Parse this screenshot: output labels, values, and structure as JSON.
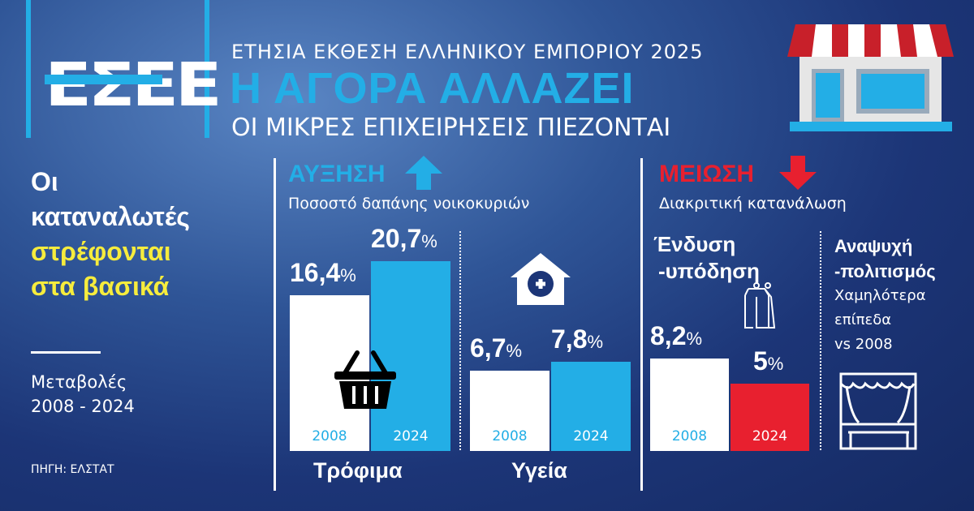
{
  "header": {
    "logo": "ΕΣΕΕ",
    "kicker": "ΕΤΗΣΙΑ ΕΚΘΕΣΗ ΕΛΛΗΝΙΚΟΥ ΕΜΠΟΡΙΟΥ 2025",
    "title": "Η ΑΓΟΡΑ ΑΛΛΑΖΕΙ",
    "subtitle": "ΟΙ ΜΙΚΡΕΣ ΕΠΙΧΕΙΡΗΣΕΙΣ ΠΙΕΖΟΝΤΑΙ"
  },
  "lead": {
    "line1": "Οι",
    "line2": "καταναλωτές",
    "line3": "στρέφονται",
    "line4": "στα βασικά",
    "period_label": "Μεταβολές",
    "period": "2008 - 2024",
    "source": "ΠΗΓΗ: ΕΛΣΤΑΤ"
  },
  "colors": {
    "blue": "#23aee6",
    "red": "#e8202f",
    "white": "#ffffff",
    "yellow": "#f6ec3d"
  },
  "chart_data": [
    {
      "type": "bar",
      "group_title": "ΑΥΞΗΣΗ",
      "subtitle": "Ποσοστό δαπάνης νοικοκυριών",
      "categories": [
        "Τρόφιμα",
        "Υγεία"
      ],
      "series": [
        {
          "name": "2008",
          "values": [
            16.4,
            6.7
          ]
        },
        {
          "name": "2024",
          "values": [
            20.7,
            7.8
          ]
        }
      ],
      "labels": [
        [
          "16,4",
          "20,7"
        ],
        [
          "6,7",
          "7,8"
        ]
      ],
      "unit": "%"
    },
    {
      "type": "bar",
      "group_title": "ΜΕΙΩΣΗ",
      "subtitle": "Διακριτική κατανάλωση",
      "categories": [
        "Ένδυση -υπόδηση"
      ],
      "series": [
        {
          "name": "2008",
          "values": [
            8.2
          ]
        },
        {
          "name": "2024",
          "values": [
            5
          ]
        }
      ],
      "labels": [
        [
          "8,2",
          "5"
        ]
      ],
      "unit": "%"
    }
  ],
  "decrease": {
    "cat1_line1": "Ένδυση",
    "cat1_line2": "-υπόδηση",
    "cat2_line1": "Αναψυχή",
    "cat2_line2": "-πολιτισμός",
    "note1": "Χαμηλότερα",
    "note2": "επίπεδα",
    "note3": "vs 2008"
  }
}
